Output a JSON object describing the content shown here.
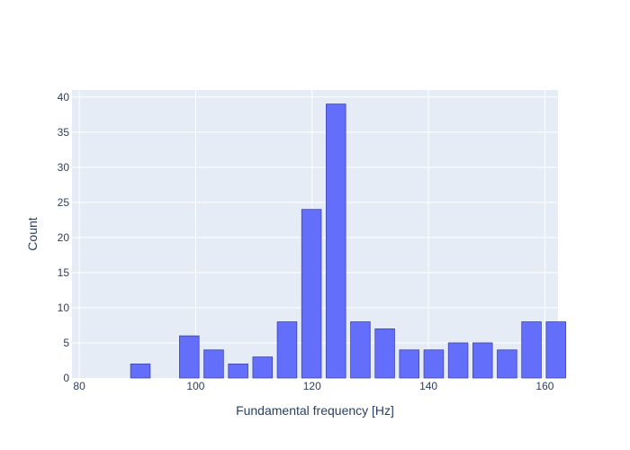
{
  "chart_data": {
    "type": "bar",
    "title": "",
    "xlabel": "Fundamental frequency [Hz]",
    "ylabel": "Count",
    "xlim": [
      78.75,
      162.25
    ],
    "ylim": [
      0,
      41
    ],
    "bin_width": 4.2,
    "x": [
      82.1,
      86.3,
      90.5,
      94.7,
      98.9,
      103.1,
      107.3,
      111.5,
      115.7,
      119.9,
      124.1,
      128.3,
      132.5,
      136.7,
      140.9,
      145.1,
      149.3,
      153.5,
      157.7,
      161.9
    ],
    "values": [
      0,
      0,
      2,
      0,
      6,
      4,
      2,
      3,
      8,
      24,
      39,
      8,
      7,
      4,
      4,
      5,
      5,
      4,
      8,
      8
    ],
    "x_ticks": [
      80,
      100,
      120,
      140,
      160
    ],
    "x_tick_labels": [
      "80",
      "100",
      "120",
      "140",
      "160"
    ],
    "y_ticks": [
      0,
      5,
      10,
      15,
      20,
      25,
      30,
      35,
      40
    ],
    "y_tick_labels": [
      "0",
      "5",
      "10",
      "15",
      "20",
      "25",
      "30",
      "35",
      "40"
    ],
    "grid": true,
    "colors": {
      "bar_fill": "#636efa",
      "bar_stroke": "#3e46b0",
      "plot_bg": "#e5ecf6",
      "grid": "#ffffff",
      "text": "#2a3f5f"
    }
  }
}
